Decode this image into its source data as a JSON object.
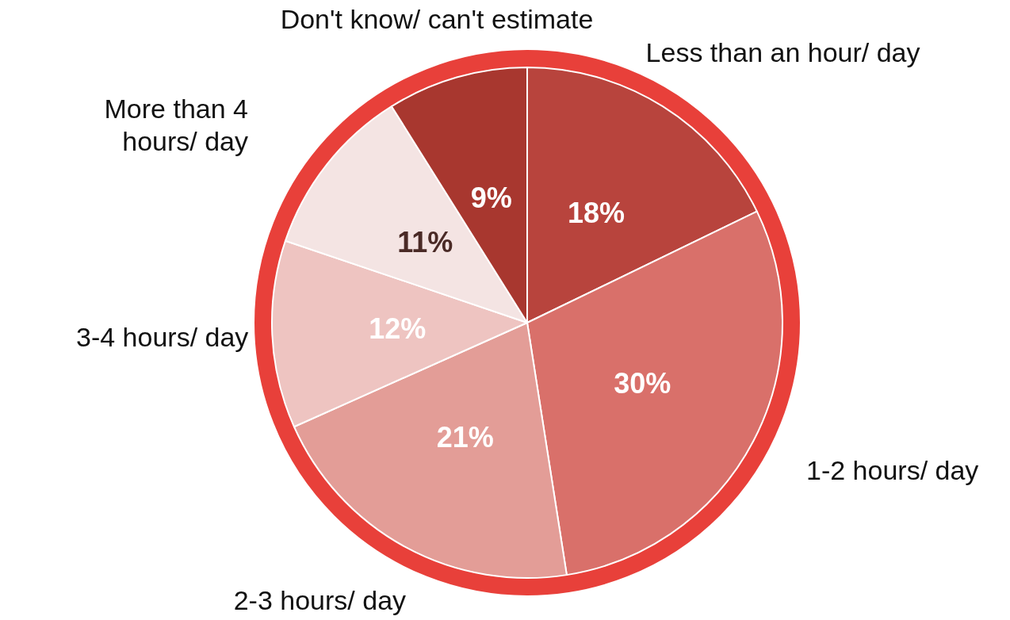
{
  "chart_data": {
    "type": "pie",
    "categories": [
      "Less than an hour/ day",
      "1-2 hours/ day",
      "2-3 hours/ day",
      "3-4 hours/ day",
      "More than 4 hours/ day",
      "Don't know/ can't estimate"
    ],
    "values": [
      18,
      30,
      21,
      12,
      11,
      9
    ],
    "value_labels": [
      "18%",
      "30%",
      "21%",
      "12%",
      "11%",
      "9%"
    ],
    "colors": [
      "#b8443d",
      "#d9706a",
      "#e39d97",
      "#eec4c1",
      "#f4e4e3",
      "#a8372f"
    ],
    "legend": false
  }
}
